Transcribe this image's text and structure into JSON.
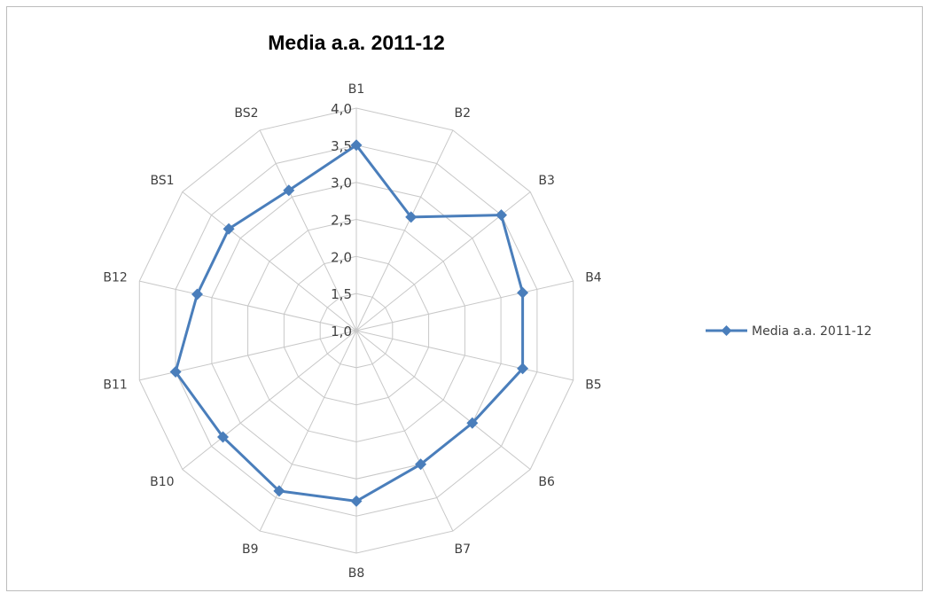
{
  "chart_data": {
    "type": "radar",
    "title": "Media a.a. 2011-12",
    "categories": [
      "B1",
      "B2",
      "B3",
      "B4",
      "B5",
      "B6",
      "B7",
      "B8",
      "B9",
      "B10",
      "B11",
      "B12",
      "BS1",
      "BS2"
    ],
    "series": [
      {
        "name": "Media a.a. 2011-12",
        "color": "#4a7ebb",
        "marker": "diamond",
        "values": [
          3.5,
          2.7,
          3.5,
          3.3,
          3.3,
          3.0,
          3.0,
          3.3,
          3.4,
          3.3,
          3.5,
          3.2,
          3.2,
          3.1
        ]
      }
    ],
    "radial_axis": {
      "min": 1.0,
      "max": 4.0,
      "step": 0.5,
      "ticks": [
        "1,0",
        "1,5",
        "2,0",
        "2,5",
        "3,0",
        "3,5",
        "4,0"
      ]
    },
    "grid": true,
    "legend_position": "right"
  }
}
